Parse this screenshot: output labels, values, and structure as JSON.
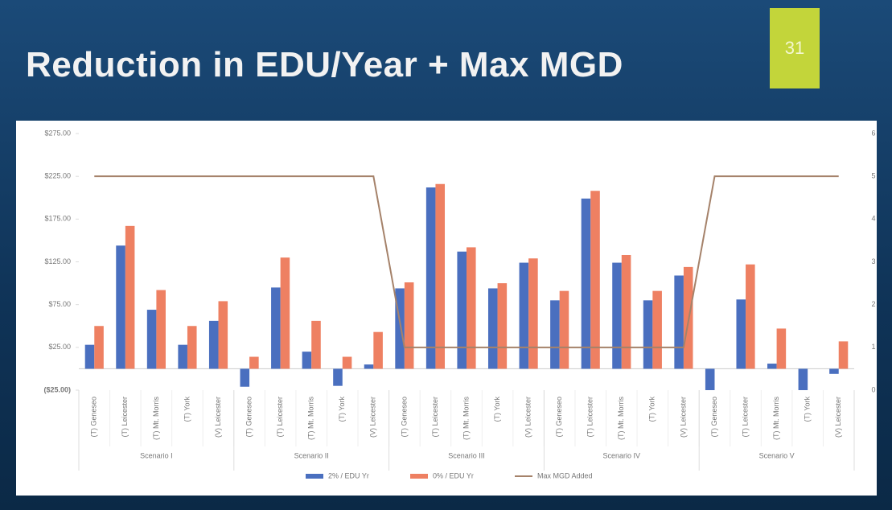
{
  "slide": {
    "title": "Reduction in EDU/Year + Max MGD",
    "number": "31"
  },
  "chart_data": {
    "type": "bar",
    "categories": [
      "(T) Geneseo",
      "(T) Leicester",
      "(T) Mt. Morris",
      "(T) York",
      "(V) Leicester",
      "(T) Geneseo",
      "(T) Leicester",
      "(T) Mt. Morris",
      "(T) York",
      "(V) Leicester",
      "(T) Geneseo",
      "(T) Leicester",
      "(T) Mt. Morris",
      "(T) York",
      "(V) Leicester",
      "(T) Geneseo",
      "(T) Leicester",
      "(T) Mt. Morris",
      "(T) York",
      "(V) Leicester",
      "(T) Geneseo",
      "(T) Leicester",
      "(T) Mt. Morris",
      "(T) York",
      "(V) Leicester"
    ],
    "groups": [
      "Scenario I",
      "Scenario II",
      "Scenario III",
      "Scenario IV",
      "Scenario V"
    ],
    "series": [
      {
        "name": "2% / EDU Yr",
        "type": "bar",
        "color": "#4a6fbf",
        "values": [
          28,
          144,
          69,
          28,
          56,
          -21,
          95,
          20,
          -20,
          5,
          94,
          212,
          137,
          94,
          124,
          80,
          199,
          124,
          80,
          109,
          -25,
          81,
          6,
          -25,
          -6
        ]
      },
      {
        "name": "0% / EDU Yr",
        "type": "bar",
        "color": "#ee8062",
        "values": [
          50,
          167,
          92,
          50,
          79,
          14,
          130,
          56,
          14,
          43,
          101,
          216,
          142,
          100,
          129,
          91,
          208,
          133,
          91,
          119,
          0,
          122,
          47,
          0,
          32
        ]
      },
      {
        "name": "Max MGD Added",
        "type": "line",
        "axis": "y2",
        "color": "#a5826a",
        "values": [
          5,
          5,
          5,
          5,
          5,
          5,
          5,
          5,
          5,
          5,
          1,
          1,
          1,
          1,
          1,
          1,
          1,
          1,
          1,
          1,
          5,
          5,
          5,
          5,
          5
        ]
      }
    ],
    "ylim": [
      -25,
      275
    ],
    "yticks": [
      {
        "value": -25,
        "label": "($25.00)"
      },
      {
        "value": 25,
        "label": "$25.00"
      },
      {
        "value": 75,
        "label": "$75.00"
      },
      {
        "value": 125,
        "label": "$125.00"
      },
      {
        "value": 175,
        "label": "$175.00"
      },
      {
        "value": 225,
        "label": "$225.00"
      },
      {
        "value": 275,
        "label": "$275.00"
      }
    ],
    "y2lim": [
      0,
      6
    ],
    "y2ticks": [
      0,
      1,
      2,
      3,
      4,
      5,
      6
    ],
    "legend": "bottom"
  }
}
